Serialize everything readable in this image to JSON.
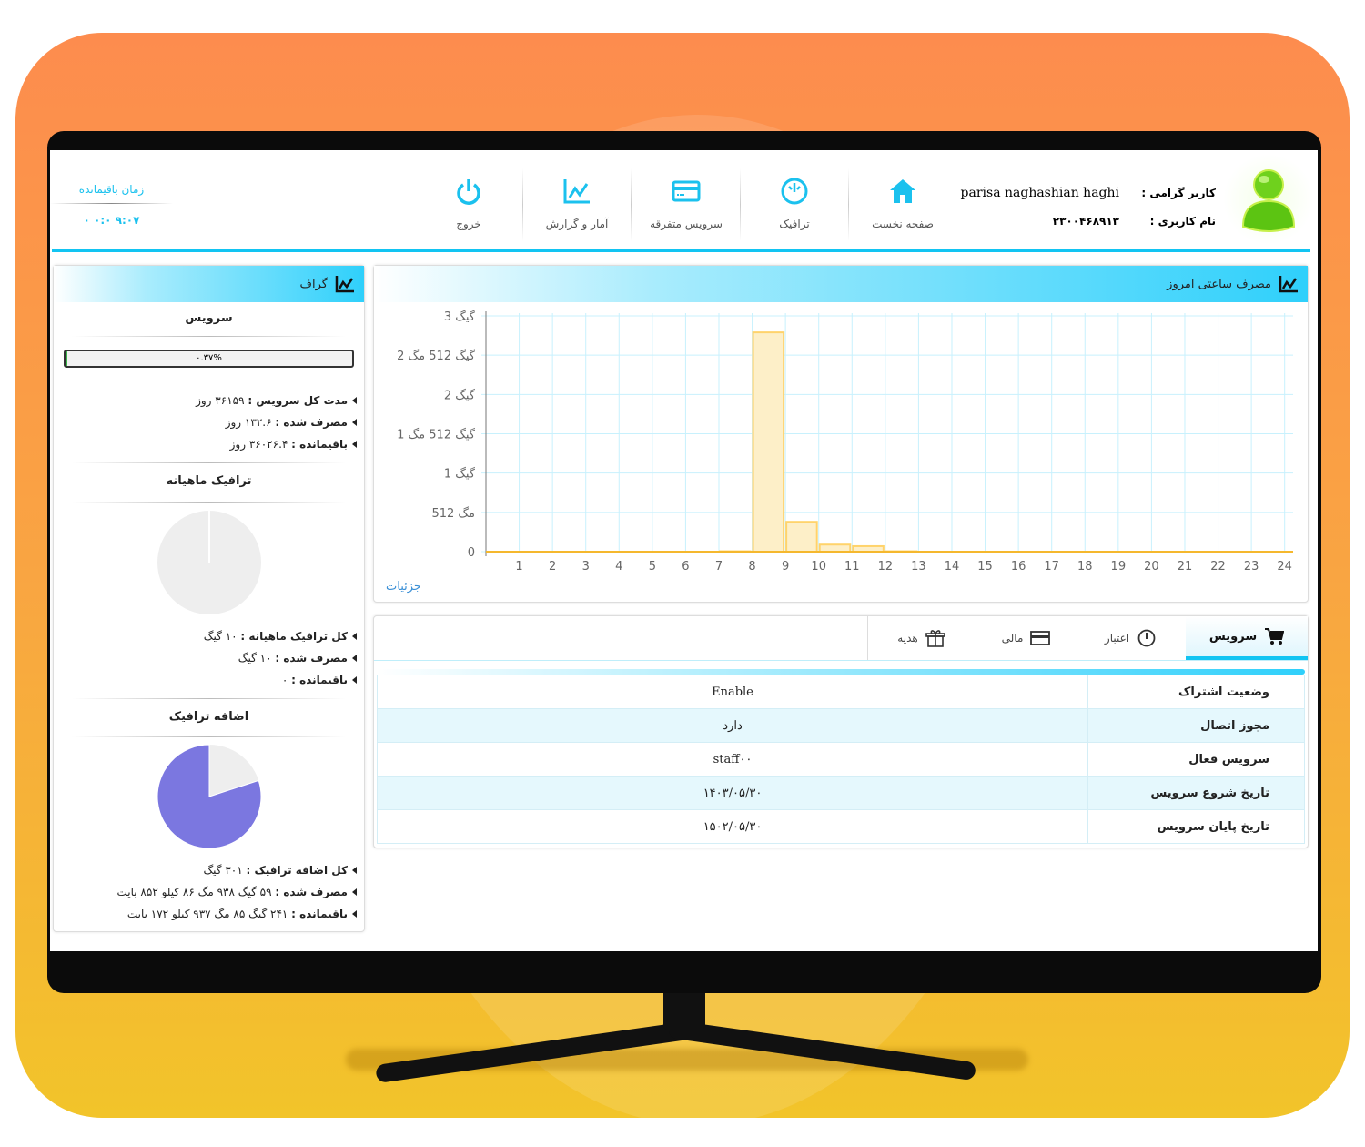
{
  "header": {
    "user_label": "کاربر گرامی :",
    "user_name": "parisa naghashian haghi",
    "username_label": "نام کاربری :",
    "username": "۲۳۰۰۴۶۸۹۱۳",
    "nav": [
      {
        "label": "صفحه نخست",
        "icon": "home-icon"
      },
      {
        "label": "ترافیک",
        "icon": "gauge-icon"
      },
      {
        "label": "سرویس متفرقه",
        "icon": "card-icon"
      },
      {
        "label": "آمار و گزارش",
        "icon": "chart-icon"
      },
      {
        "label": "خروج",
        "icon": "power-icon"
      }
    ],
    "remaining_time_label": "زمان باقیمانده",
    "remaining_time": "۰ ۰:۰ ۹:۰۷"
  },
  "sidebar": {
    "title": "گراف",
    "service": {
      "heading": "سرویس",
      "progress_text": "۰.۳۷%",
      "progress": 0.37,
      "items": [
        {
          "k": "مدت کل سرویس :",
          "v": " ۳۶۱۵۹ روز"
        },
        {
          "k": "مصرف شده :",
          "v": " ۱۳۲.۶ روز"
        },
        {
          "k": "باقیمانده :",
          "v": " ۳۶۰۲۶.۴ روز"
        }
      ]
    },
    "monthly": {
      "heading": "ترافیک ماهیانه",
      "used_fraction": 1.0,
      "items": [
        {
          "k": "کل ترافیک ماهیانه :",
          "v": " ۱۰ گیگ"
        },
        {
          "k": "مصرف شده :",
          "v": " ۱۰ گیگ"
        },
        {
          "k": "باقیمانده :",
          "v": " ۰"
        }
      ]
    },
    "extra": {
      "heading": "اضافه ترافیک",
      "remaining_fraction": 0.8,
      "colors": {
        "remaining": "#7b77e0",
        "used": "#eeeeee"
      },
      "items": [
        {
          "k": "کل اضافه ترافیک :",
          "v": " ۳۰۱ گیگ"
        },
        {
          "k": "مصرف شده :",
          "v": " ۵۹ گیگ ۹۳۸ مگ ۸۶ کیلو ۸۵۲ بایت"
        },
        {
          "k": "باقیمانده :",
          "v": " ۲۴۱ گیگ ۸۵ مگ ۹۳۷ کیلو ۱۷۲ بایت"
        }
      ]
    }
  },
  "chart_panel": {
    "title": "مصرف ساعتی امروز",
    "details_link": "جزئیات"
  },
  "chart_data": {
    "type": "bar",
    "title": "مصرف ساعتی امروز",
    "x": [
      0,
      1,
      2,
      3,
      4,
      5,
      6,
      7,
      8,
      9,
      10,
      11,
      12,
      13,
      14,
      15,
      16,
      17,
      18,
      19,
      20,
      21,
      22,
      23
    ],
    "x_tick_labels": [
      "1",
      "2",
      "3",
      "4",
      "5",
      "6",
      "7",
      "8",
      "9",
      "10",
      "11",
      "12",
      "13",
      "14",
      "15",
      "16",
      "17",
      "18",
      "19",
      "20",
      "21",
      "22",
      "23",
      "24"
    ],
    "values_gb": [
      0,
      0,
      0,
      0,
      0,
      0,
      0,
      0.005,
      2.79,
      0.38,
      0.09,
      0.07,
      0.005,
      0,
      0,
      0,
      0,
      0,
      0,
      0,
      0,
      0,
      0,
      0
    ],
    "ylim": [
      0,
      3
    ],
    "y_ticks": [
      {
        "v": 0,
        "label": "0"
      },
      {
        "v": 0.5,
        "label": "512 مگ"
      },
      {
        "v": 1,
        "label": "1 گیگ"
      },
      {
        "v": 1.5,
        "label": "1 گیگ 512 مگ"
      },
      {
        "v": 2,
        "label": "2 گیگ"
      },
      {
        "v": 2.5,
        "label": "2 گیگ 512 مگ"
      },
      {
        "v": 3,
        "label": "3 گیگ"
      }
    ],
    "grid": true,
    "bar_color": "#fdefc8",
    "bar_border": "#ffd36b"
  },
  "tabs": [
    {
      "label": "سرویس",
      "icon": "cart-icon",
      "active": true
    },
    {
      "label": "اعتبار",
      "icon": "gauge-icon"
    },
    {
      "label": "مالی",
      "icon": "card-icon"
    },
    {
      "label": "هدیه",
      "icon": "gift-icon"
    }
  ],
  "table": [
    {
      "k": "وضعیت اشتراک",
      "v": "Enable"
    },
    {
      "k": "مجوز اتصال",
      "v": "دارد"
    },
    {
      "k": "سرویس فعال",
      "v": "staff۰۰"
    },
    {
      "k": "تاریخ شروع سرویس",
      "v": "۱۴۰۳/۰۵/۳۰"
    },
    {
      "k": "تاریخ پایان سرویس",
      "v": "۱۵۰۲/۰۵/۳۰"
    }
  ]
}
